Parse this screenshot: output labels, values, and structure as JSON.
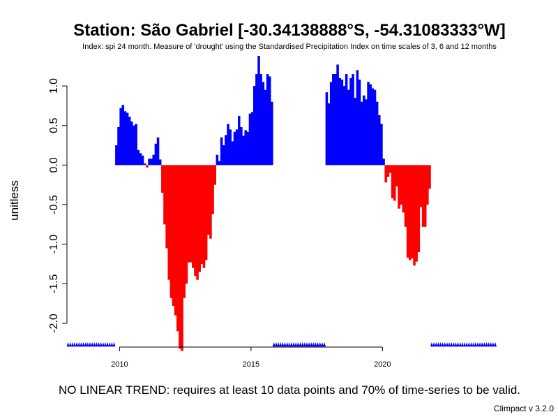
{
  "chart_data": {
    "type": "bar",
    "title": "Station: São Gabriel [-30.34138888°S, -54.31083333°W]",
    "subtitle": "Index: spi 24 month. Measure of 'drought' using the Standardised Precipitation Index on time scales of 3, 6 and 12 months",
    "xlabel": "",
    "ylabel": "unitless",
    "x_start": 2008.0,
    "x_step": 0.08333,
    "xlim": [
      2008.0,
      2024.9
    ],
    "ylim": [
      -2.3,
      1.38
    ],
    "x_ticks": [
      2010,
      2015,
      2020
    ],
    "y_ticks": [
      -2.0,
      -1.5,
      -1.0,
      -0.5,
      0.0,
      0.5,
      1.0
    ],
    "y_tick_labels": [
      "-2.0",
      "-1.5",
      "-1.0",
      "-0.5",
      "0.0",
      "0.5",
      "1.0"
    ],
    "positive_color": "#0000ff",
    "negative_color": "#ff0000",
    "missing_marker_color": "#0000ff",
    "grid": false,
    "values": [
      null,
      null,
      null,
      null,
      null,
      null,
      null,
      null,
      null,
      null,
      null,
      null,
      null,
      null,
      null,
      null,
      null,
      null,
      null,
      null,
      null,
      null,
      0.25,
      0.48,
      0.72,
      0.76,
      0.68,
      0.66,
      0.61,
      0.55,
      0.5,
      0.52,
      0.19,
      0.15,
      0.12,
      0.02,
      -0.03,
      0.08,
      0.08,
      0.13,
      0.27,
      0.35,
      0.07,
      -0.35,
      -0.75,
      -1.05,
      -1.45,
      -1.68,
      -1.78,
      -1.9,
      -2.1,
      -2.32,
      -2.35,
      -1.68,
      -1.5,
      -1.23,
      -1.23,
      -1.3,
      -1.4,
      -1.45,
      -1.35,
      -1.25,
      -1.3,
      -1.2,
      -0.88,
      -0.93,
      -0.62,
      -0.25,
      0.13,
      0.05,
      0.35,
      0.25,
      0.38,
      0.52,
      0.45,
      0.3,
      0.42,
      0.45,
      0.62,
      0.48,
      0.37,
      0.44,
      0.42,
      0.65,
      0.67,
      1.0,
      1.15,
      1.38,
      1.15,
      1.05,
      0.95,
      1.15,
      1.12,
      0.8,
      null,
      null,
      null,
      null,
      null,
      null,
      null,
      null,
      null,
      null,
      null,
      null,
      null,
      null,
      null,
      null,
      null,
      null,
      null,
      null,
      null,
      null,
      null,
      null,
      0.92,
      0.78,
      1.05,
      1.15,
      1.15,
      1.27,
      1.1,
      1.08,
      1.0,
      1.15,
      0.95,
      1.1,
      1.15,
      0.85,
      1.2,
      1.08,
      0.8,
      0.88,
      0.83,
      1.05,
      1.02,
      0.97,
      0.95,
      0.8,
      0.63,
      0.52,
      0.08,
      -0.22,
      -0.15,
      -0.1,
      -0.42,
      -0.45,
      -0.27,
      -0.55,
      -0.5,
      -0.6,
      -0.78,
      -1.17,
      -1.2,
      -1.18,
      -1.27,
      -1.22,
      -1.1,
      -0.53,
      -0.78,
      -0.78,
      -0.5,
      -0.3,
      null,
      null,
      null,
      null,
      null,
      null,
      null,
      null,
      null,
      null,
      null,
      null,
      null,
      null,
      null,
      null,
      null,
      null,
      null,
      null,
      null,
      null,
      null,
      null,
      null,
      null,
      null,
      null,
      null,
      null
    ],
    "trend_note": "NO LINEAR TREND: requires at least 10 data points and 70% of time-series to be valid.",
    "version": "Climpact v 3.2.0"
  }
}
